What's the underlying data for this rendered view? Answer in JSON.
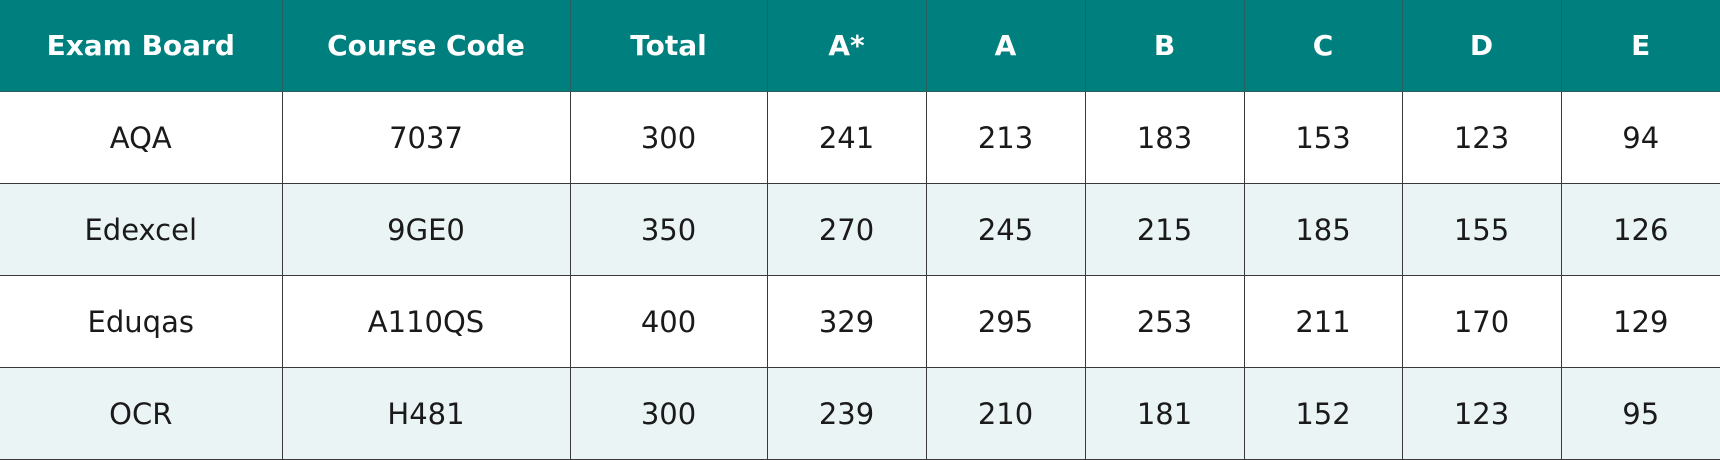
{
  "table": {
    "header": [
      "Exam Board",
      "Course Code",
      "Total",
      "A*",
      "A",
      "B",
      "C",
      "D",
      "E"
    ],
    "rows": [
      [
        "AQA",
        "7037",
        300,
        241,
        213,
        183,
        153,
        123,
        94
      ],
      [
        "Edexcel",
        "9GE0",
        350,
        270,
        245,
        215,
        185,
        155,
        126
      ],
      [
        "Eduqas",
        "A110QS",
        400,
        329,
        295,
        253,
        211,
        170,
        129
      ],
      [
        "OCR",
        "H481",
        300,
        239,
        210,
        181,
        152,
        123,
        95
      ]
    ]
  }
}
